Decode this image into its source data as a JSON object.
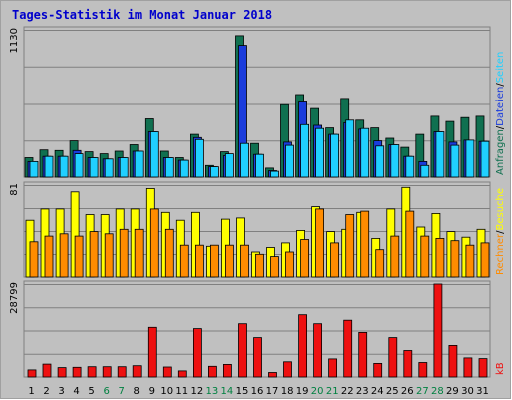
{
  "chart_data": {
    "type": "bar",
    "title": "Tages-Statistik im Monat Januar 2018",
    "categories": [
      "1",
      "2",
      "3",
      "4",
      "5",
      "6",
      "7",
      "8",
      "9",
      "10",
      "11",
      "12",
      "13",
      "14",
      "15",
      "16",
      "17",
      "18",
      "19",
      "20",
      "21",
      "22",
      "23",
      "24",
      "25",
      "26",
      "27",
      "28",
      "29",
      "30",
      "31"
    ],
    "weekend_days": [
      "6",
      "7",
      "13",
      "14",
      "20",
      "21",
      "27",
      "28"
    ],
    "colors": {
      "background": "#c0c0c0",
      "border": "#a0a0a0",
      "title": "#0000cc",
      "weekday": "#000000",
      "weekend": "#008040",
      "anfragen": "#107050",
      "dateien": "#1a3cdc",
      "seiten": "#20d0ff",
      "besuche": "#ffff00",
      "rechner": "#ff8c00",
      "kb": "#ee1010"
    },
    "panels": [
      {
        "name": "hits",
        "ymax_label": "1130",
        "ylim": [
          0,
          1130
        ],
        "series": [
          {
            "name": "Anfragen",
            "values": [
              150,
              210,
              205,
              280,
              195,
              180,
              200,
              250,
              450,
              200,
              150,
              330,
              90,
              195,
              1085,
              260,
              70,
              560,
              630,
              530,
              380,
              600,
              440,
              380,
              300,
              230,
              330,
              470,
              430,
              460,
              470
            ]
          },
          {
            "name": "Dateien",
            "values": [
              120,
              160,
              160,
              205,
              150,
              140,
              150,
              200,
              350,
              150,
              130,
              305,
              80,
              165,
              1010,
              175,
              50,
              270,
              580,
              400,
              330,
              420,
              370,
              280,
              250,
              160,
              120,
              350,
              270,
              285,
              275
            ]
          },
          {
            "name": "Seiten",
            "values": [
              120,
              160,
              160,
              180,
              150,
              140,
              150,
              200,
              350,
              150,
              130,
              290,
              80,
              180,
              260,
              175,
              45,
              245,
              405,
              375,
              330,
              440,
              375,
              240,
              250,
              160,
              90,
              350,
              245,
              285,
              275
            ]
          }
        ],
        "legend": [
          {
            "text": "Anfragen",
            "color": "anfragen"
          },
          {
            "text": "/",
            "color": "weekday"
          },
          {
            "text": "Dateien",
            "color": "dateien"
          },
          {
            "text": "/",
            "color": "weekday"
          },
          {
            "text": "Seiten",
            "color": "seiten"
          }
        ]
      },
      {
        "name": "visits",
        "ymax_label": "81",
        "ylim": [
          0,
          81
        ],
        "series": [
          {
            "name": "Besuche",
            "values": [
              50,
              60,
              60,
              75,
              55,
              55,
              60,
              60,
              78,
              57,
              50,
              57,
              27,
              51,
              52,
              22,
              26,
              30,
              41,
              62,
              40,
              42,
              57,
              34,
              60,
              79,
              44,
              56,
              40,
              35,
              42
            ]
          },
          {
            "name": "Rechner",
            "values": [
              31,
              36,
              38,
              36,
              40,
              38,
              42,
              42,
              60,
              42,
              28,
              28,
              28,
              28,
              28,
              20,
              18,
              22,
              33,
              60,
              30,
              55,
              58,
              24,
              36,
              58,
              36,
              34,
              32,
              28,
              30
            ]
          }
        ],
        "legend": [
          {
            "text": "Rechner",
            "color": "rechner"
          },
          {
            "text": "/",
            "color": "weekday"
          },
          {
            "text": "Besuche",
            "color": "besuche"
          }
        ]
      },
      {
        "name": "kb",
        "ymax_label": "28799",
        "ylim": [
          0,
          28799
        ],
        "series": [
          {
            "name": "kB",
            "values": [
              2200,
              4000,
              2900,
              3000,
              3200,
              3200,
              3200,
              3500,
              15400,
              3100,
              1900,
              15000,
              3300,
              3900,
              16500,
              12200,
              1400,
              4700,
              19300,
              16500,
              5600,
              17600,
              13800,
              4200,
              12200,
              8200,
              4500,
              28800,
              9800,
              5900,
              5700
            ]
          }
        ],
        "legend": [
          {
            "text": "kB",
            "color": "kb"
          }
        ]
      }
    ]
  }
}
